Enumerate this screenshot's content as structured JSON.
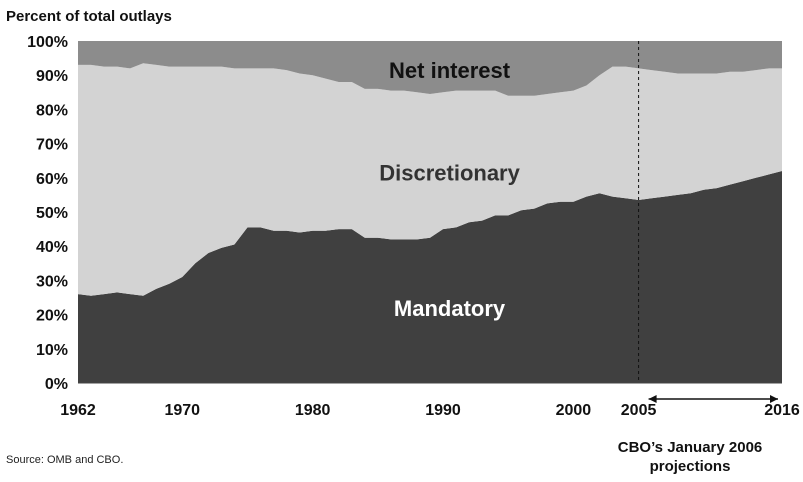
{
  "chart_data": {
    "type": "area",
    "stacked": true,
    "ylabel": "Percent of total outlays",
    "ylim": [
      0,
      100
    ],
    "yticks": [
      "0%",
      "10%",
      "20%",
      "30%",
      "40%",
      "50%",
      "60%",
      "70%",
      "80%",
      "90%",
      "100%"
    ],
    "xlim": [
      1962,
      2016
    ],
    "xticks": [
      "1962",
      "1970",
      "1980",
      "1990",
      "2000",
      "2005",
      "2016"
    ],
    "x": [
      1962,
      1963,
      1964,
      1965,
      1966,
      1967,
      1968,
      1969,
      1970,
      1971,
      1972,
      1973,
      1974,
      1975,
      1976,
      1977,
      1978,
      1979,
      1980,
      1981,
      1982,
      1983,
      1984,
      1985,
      1986,
      1987,
      1988,
      1989,
      1990,
      1991,
      1992,
      1993,
      1994,
      1995,
      1996,
      1997,
      1998,
      1999,
      2000,
      2001,
      2002,
      2003,
      2004,
      2005,
      2006,
      2007,
      2008,
      2009,
      2010,
      2011,
      2012,
      2013,
      2014,
      2015,
      2016
    ],
    "series": [
      {
        "name": "Mandatory",
        "color": "#404040",
        "values": [
          26,
          25.5,
          26,
          26.5,
          26,
          25.5,
          27.5,
          29,
          31,
          35,
          38,
          39.5,
          40.5,
          45.5,
          45.5,
          44.5,
          44.5,
          44,
          44.5,
          44.5,
          45,
          45,
          42.5,
          42.5,
          42,
          42,
          42,
          42.5,
          45,
          45.5,
          47,
          47.5,
          49,
          49,
          50.5,
          51,
          52.5,
          53,
          53,
          54.5,
          55.5,
          54.5,
          54,
          53.5,
          54,
          54.5,
          55,
          55.5,
          56.5,
          57,
          58,
          59,
          60,
          61,
          62
        ]
      },
      {
        "name": "Discretionary",
        "color": "#d3d3d3",
        "values": [
          67,
          67.5,
          66.5,
          66,
          66,
          68,
          65.5,
          63.5,
          61.5,
          57.5,
          54.5,
          53,
          51.5,
          46.5,
          46.5,
          47.5,
          47,
          46.5,
          45.5,
          44.5,
          43,
          43,
          43.5,
          43.5,
          43.5,
          43.5,
          43,
          42,
          40,
          40,
          38.5,
          38,
          36.5,
          35,
          33.5,
          33,
          32,
          32,
          32.5,
          32.5,
          34.5,
          38,
          38.5,
          38.5,
          37.5,
          36.5,
          35.5,
          35,
          34,
          33.5,
          33,
          32,
          31.5,
          31,
          30
        ]
      },
      {
        "name": "Net interest",
        "color": "#8c8c8c",
        "values": [
          7,
          7,
          7.5,
          7.5,
          8,
          6.5,
          7,
          7.5,
          7.5,
          7.5,
          7.5,
          7.5,
          8,
          8,
          8,
          8,
          8.5,
          9.5,
          10,
          11,
          12,
          12,
          14,
          14,
          14.5,
          14.5,
          15,
          15.5,
          15,
          14.5,
          14.5,
          14.5,
          14.5,
          16,
          16,
          16,
          15.5,
          15,
          14.5,
          13,
          10,
          7.5,
          7.5,
          8,
          8.5,
          9,
          9.5,
          9.5,
          9.5,
          9.5,
          9,
          9,
          8.5,
          8,
          8
        ]
      }
    ],
    "projection_start": 2005,
    "annotation": "CBO’s January 2006 projections"
  },
  "source_note": "Source:  OMB and CBO."
}
